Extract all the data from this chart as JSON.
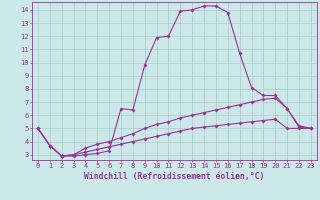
{
  "xlabel": "Windchill (Refroidissement éolien,°C)",
  "background_color": "#cce8e8",
  "grid_color": "#aacccc",
  "line_color": "#993399",
  "xlim": [
    -0.5,
    23.5
  ],
  "ylim": [
    2.6,
    14.6
  ],
  "xticks": [
    0,
    1,
    2,
    3,
    4,
    5,
    6,
    7,
    8,
    9,
    10,
    11,
    12,
    13,
    14,
    15,
    16,
    17,
    18,
    19,
    20,
    21,
    22,
    23
  ],
  "yticks": [
    3,
    4,
    5,
    6,
    7,
    8,
    9,
    10,
    11,
    12,
    13,
    14
  ],
  "line1_x": [
    0,
    1,
    2,
    3,
    4,
    5,
    6,
    7,
    8,
    9,
    10,
    11,
    12,
    13,
    14,
    15,
    16,
    17,
    18,
    19,
    20,
    21,
    22,
    23
  ],
  "line1_y": [
    5.0,
    3.7,
    2.9,
    2.9,
    3.0,
    3.1,
    3.3,
    6.5,
    6.4,
    9.8,
    11.9,
    12.0,
    13.9,
    14.0,
    14.3,
    14.3,
    13.8,
    10.7,
    8.1,
    7.5,
    7.5,
    6.5,
    5.1,
    5.0
  ],
  "line2_x": [
    0,
    1,
    2,
    3,
    4,
    5,
    6,
    7,
    8,
    9,
    10,
    11,
    12,
    13,
    14,
    15,
    16,
    17,
    18,
    19,
    20,
    21,
    22,
    23
  ],
  "line2_y": [
    5.0,
    3.7,
    2.9,
    3.0,
    3.5,
    3.8,
    4.0,
    4.3,
    4.6,
    5.0,
    5.3,
    5.5,
    5.8,
    6.0,
    6.2,
    6.4,
    6.6,
    6.8,
    7.0,
    7.2,
    7.3,
    6.5,
    5.2,
    5.0
  ],
  "line3_x": [
    0,
    1,
    2,
    3,
    4,
    5,
    6,
    7,
    8,
    9,
    10,
    11,
    12,
    13,
    14,
    15,
    16,
    17,
    18,
    19,
    20,
    21,
    22,
    23
  ],
  "line3_y": [
    5.0,
    3.7,
    2.9,
    3.0,
    3.2,
    3.4,
    3.6,
    3.8,
    4.0,
    4.2,
    4.4,
    4.6,
    4.8,
    5.0,
    5.1,
    5.2,
    5.3,
    5.4,
    5.5,
    5.6,
    5.7,
    5.0,
    5.0,
    5.0
  ],
  "marker_size": 2.0,
  "tick_fontsize": 5.0,
  "label_fontsize": 5.8,
  "linewidth": 0.8
}
